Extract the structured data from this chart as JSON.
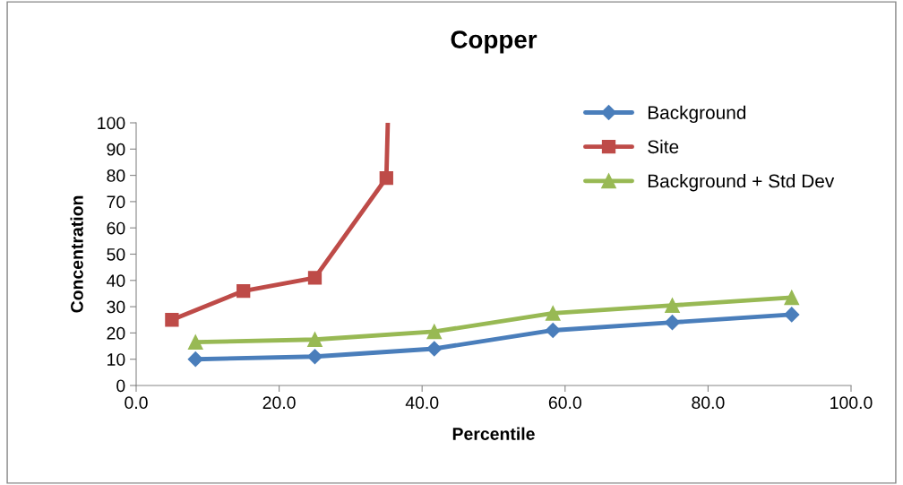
{
  "chart_data": {
    "type": "line",
    "title": "Copper",
    "xlabel": "Percentile",
    "ylabel": "Concentration",
    "xlim": [
      0,
      100
    ],
    "xticks": [
      {
        "value": 0,
        "label": "0.0"
      },
      {
        "value": 20,
        "label": "20.0"
      },
      {
        "value": 40,
        "label": "40.0"
      },
      {
        "value": 60,
        "label": "60.0"
      },
      {
        "value": 80,
        "label": "80.0"
      },
      {
        "value": 100,
        "label": "100.0"
      }
    ],
    "ylim": [
      0,
      100
    ],
    "yticks": [
      0,
      10,
      20,
      30,
      40,
      50,
      60,
      70,
      80,
      90,
      100
    ],
    "grid": false,
    "legend": "top right",
    "line_style": "solid",
    "series": [
      {
        "name": "Background",
        "color": "#4a7ebb",
        "marker": "diamond",
        "x": [
          8.3,
          25,
          41.7,
          58.3,
          75,
          91.7
        ],
        "values": [
          10,
          11,
          14,
          21,
          24,
          27
        ]
      },
      {
        "name": "Site",
        "color": "#be4b48",
        "marker": "square",
        "x": [
          5,
          15,
          25,
          35,
          35.2
        ],
        "values": [
          25,
          36,
          41,
          79,
          100
        ]
      },
      {
        "name": "Background + Std Dev",
        "color": "#98b954",
        "marker": "triangle",
        "x": [
          8.3,
          25,
          41.7,
          58.3,
          75,
          91.7
        ],
        "values": [
          16.5,
          17.5,
          20.5,
          27.5,
          30.5,
          33.5
        ]
      }
    ]
  }
}
